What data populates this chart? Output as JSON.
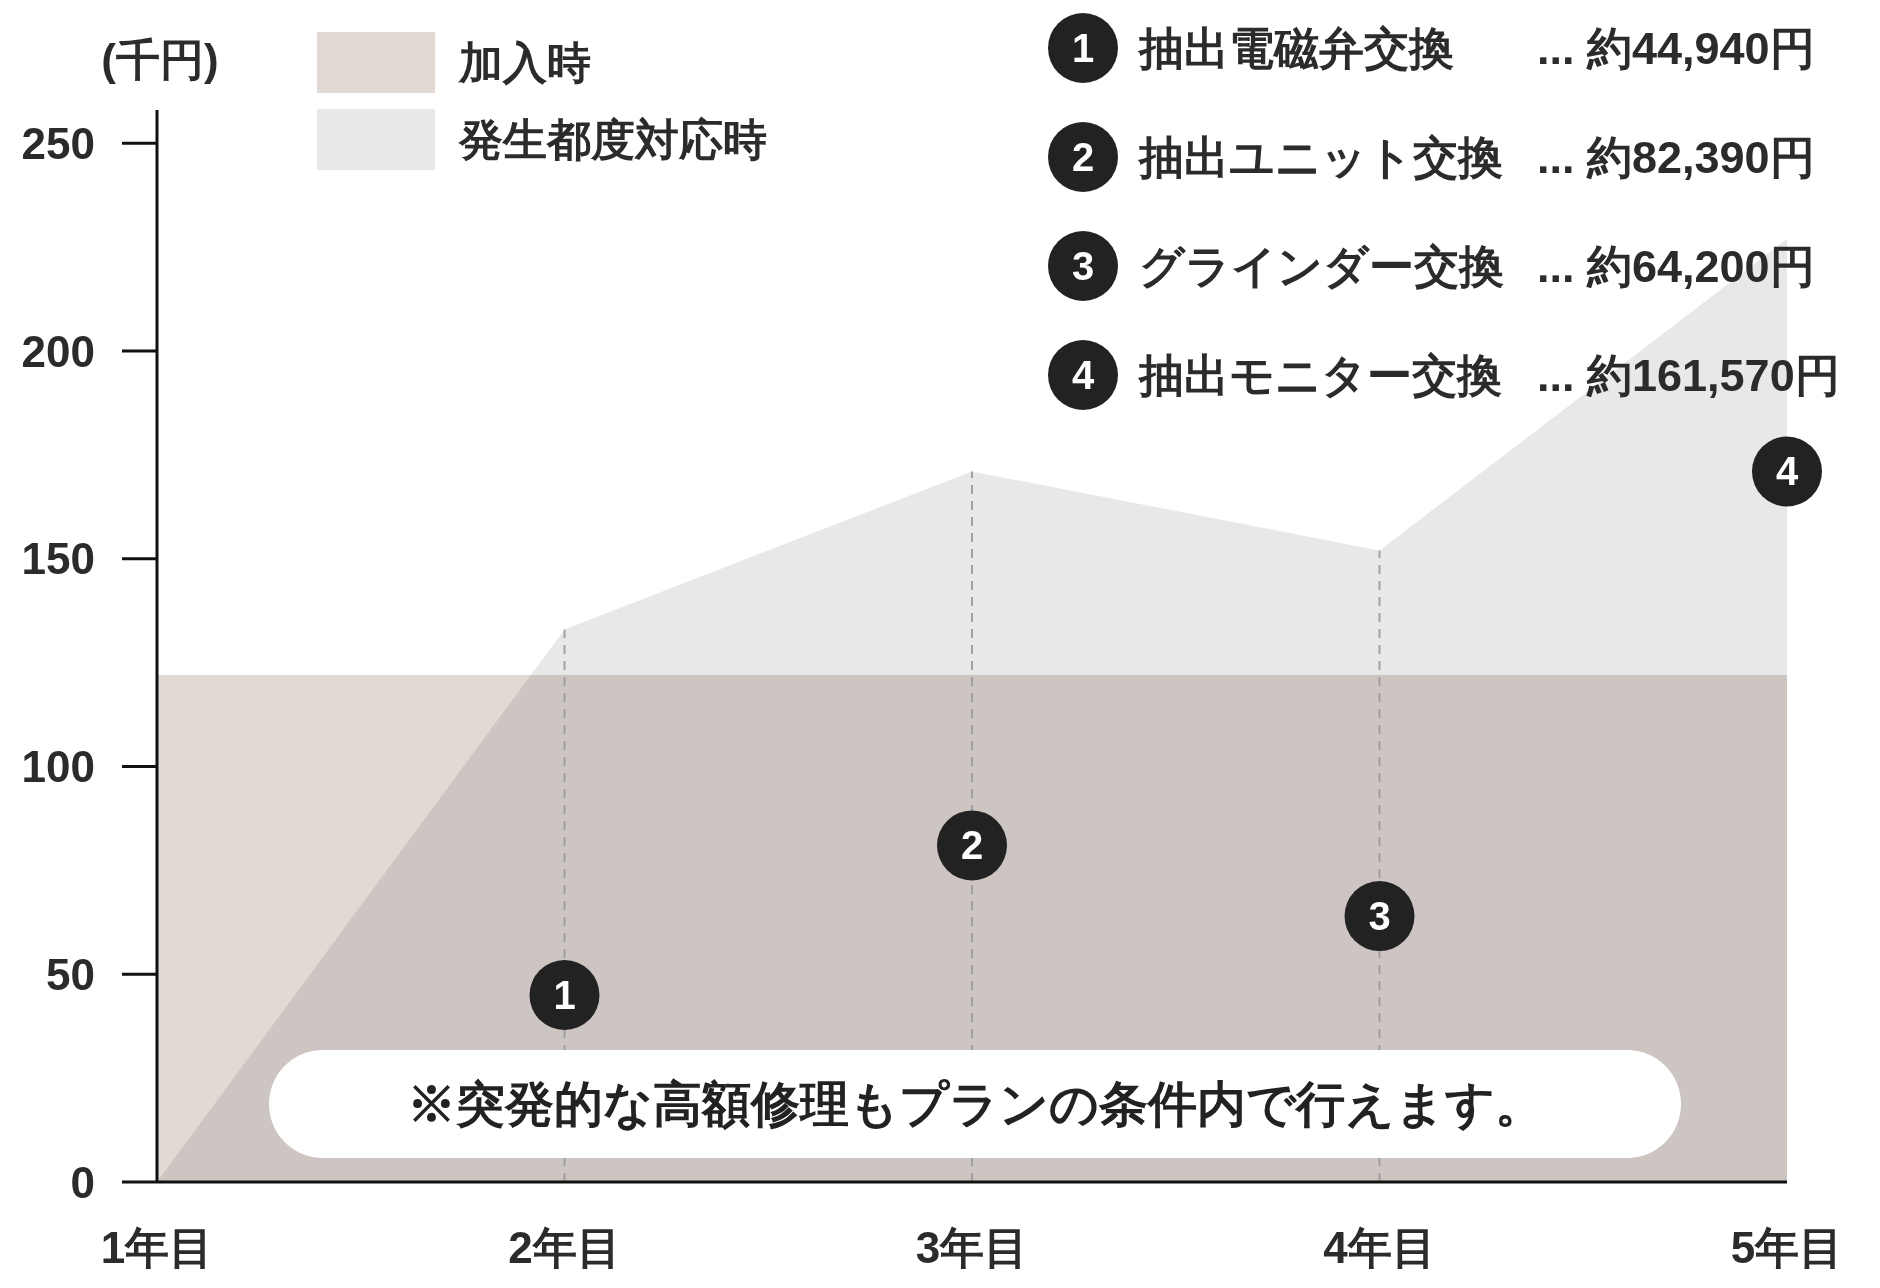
{
  "chart_data": {
    "type": "area",
    "ylabel": "(千円)",
    "categories": [
      "1年目",
      "2年目",
      "3年目",
      "4年目",
      "5年目"
    ],
    "series": [
      {
        "name": "加入時",
        "color": "#e2d9d4",
        "values": [
          122,
          122,
          122,
          122,
          122
        ]
      },
      {
        "name": "発生都度対応時",
        "color": "#e8e8e8",
        "values": [
          0,
          133,
          171,
          152,
          227
        ]
      }
    ],
    "ylim": [
      0,
      258
    ],
    "yticks": [
      0,
      50,
      100,
      150,
      200,
      250
    ],
    "legend": "top left",
    "ref_lines": [
      {
        "axis": "x",
        "value": "2年目",
        "line_style": "dashed",
        "color": "#a0a0a0"
      },
      {
        "axis": "x",
        "value": "3年目",
        "line_style": "dashed",
        "color": "#a0a0a0"
      },
      {
        "axis": "x",
        "value": "4年目",
        "line_style": "dashed",
        "color": "#a0a0a0"
      }
    ],
    "annotations": [
      {
        "text": "1",
        "x": "2年目",
        "y": 45
      },
      {
        "text": "2",
        "x": "3年目",
        "y": 81
      },
      {
        "text": "3",
        "x": "4年目",
        "y": 64
      },
      {
        "text": "4",
        "x": "5年目",
        "y": 171
      },
      "1 抽出電磁弁交換 ... 約44,940円",
      "2 抽出ユニット交換 ... 約82,390円",
      "3 グラインダー交換 ... 約64,200円",
      "4 抽出モニター交換 ... 約161,570円",
      "※突発的な高額修理もプランの条件内で行えます。"
    ]
  }
}
